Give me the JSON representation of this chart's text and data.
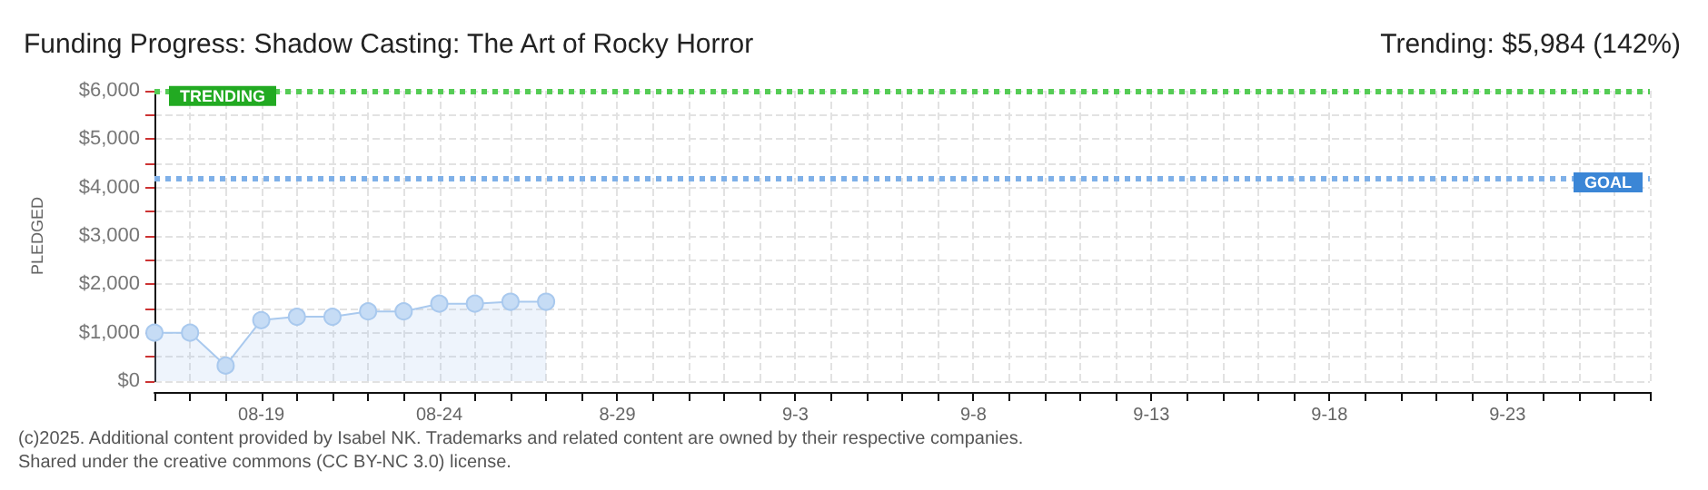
{
  "chart_data": {
    "type": "area",
    "title": "Funding Progress: Shadow Casting: The Art of Rocky Horror",
    "subtitle": "Trending: $5,984 (142%)",
    "ylabel": "PLEDGED",
    "categories": [
      null,
      null,
      null,
      "08-19",
      null,
      null,
      null,
      null,
      "08-24",
      null,
      null,
      null,
      null,
      "8-29",
      null,
      null,
      null,
      null,
      "9-3",
      null,
      null,
      null,
      null,
      "9-8",
      null,
      null,
      null,
      null,
      "9-13",
      null,
      null,
      null,
      null,
      "9-18",
      null,
      null,
      null,
      null,
      "9-23",
      null,
      null,
      null,
      null
    ],
    "series": [
      {
        "color": "#a9c9ee",
        "values": [
          1000,
          1000,
          320,
          1260,
          1330,
          1330,
          1440,
          1440,
          1600,
          1600,
          1640,
          1640,
          null,
          null,
          null,
          null,
          null,
          null,
          null,
          null,
          null,
          null,
          null,
          null,
          null,
          null,
          null,
          null,
          null,
          null,
          null,
          null,
          null,
          null,
          null,
          null,
          null,
          null,
          null,
          null,
          null,
          null,
          null
        ]
      }
    ],
    "ylim": [
      0,
      6000
    ],
    "yticks": [
      {
        "value": 0,
        "label": "$0"
      },
      {
        "value": 500,
        "label": null
      },
      {
        "value": 1000,
        "label": "$1,000"
      },
      {
        "value": 1500,
        "label": null
      },
      {
        "value": 2000,
        "label": "$2,000"
      },
      {
        "value": 2500,
        "label": null
      },
      {
        "value": 3000,
        "label": "$3,000"
      },
      {
        "value": 3500,
        "label": null
      },
      {
        "value": 4000,
        "label": "$4,000"
      },
      {
        "value": 4500,
        "label": null
      },
      {
        "value": 5000,
        "label": "$5,000"
      },
      {
        "value": 5500,
        "label": null
      },
      {
        "value": 6000,
        "label": "$6,000"
      }
    ],
    "ref_lines": [
      {
        "axis": "y",
        "value": 5984,
        "label": "TRENDING",
        "color": "#55cc55",
        "line_style": "dotted"
      },
      {
        "axis": "y",
        "value": 4200,
        "label": "GOAL",
        "color": "#7fb0e8",
        "line_style": "dotted"
      }
    ],
    "annotations": [
      "(c)2025. Additional content provided by Isabel NK. Trademarks and related content are owned by their respective companies.",
      "Shared under the creative commons (CC BY-NC 3.0) license."
    ],
    "grid": true,
    "marker": "circle"
  }
}
